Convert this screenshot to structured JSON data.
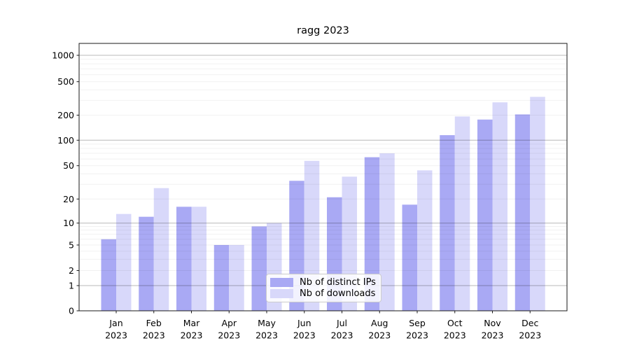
{
  "chart_data": {
    "type": "bar",
    "title": "ragg 2023",
    "x_tick_months": [
      "Jan",
      "Feb",
      "Mar",
      "Apr",
      "May",
      "Jun",
      "Jul",
      "Aug",
      "Sep",
      "Oct",
      "Nov",
      "Dec"
    ],
    "x_tick_year": "2023",
    "y_ticks": [
      0,
      1,
      2,
      5,
      10,
      20,
      50,
      100,
      200,
      500,
      1000
    ],
    "y_scale": "symlog",
    "ylim": [
      0,
      1400
    ],
    "grid": true,
    "legend_position": "lower-center",
    "series": [
      {
        "name": "Nb of distinct IPs",
        "color": "#a9a9f4",
        "values": [
          6,
          12,
          16,
          5,
          9,
          33,
          21,
          63,
          17,
          115,
          177,
          204
        ]
      },
      {
        "name": "Nb of downloads",
        "color": "#d8d8fa",
        "values": [
          13,
          27,
          16,
          5,
          10,
          57,
          37,
          70,
          44,
          193,
          284,
          330
        ]
      }
    ]
  }
}
